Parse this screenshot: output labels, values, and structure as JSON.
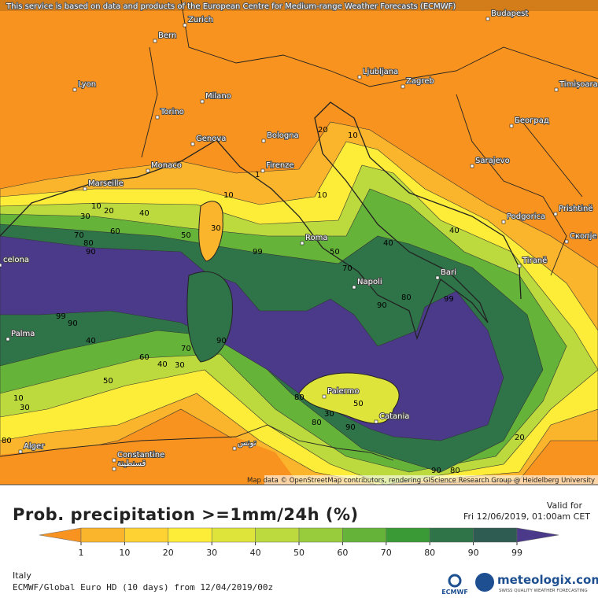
{
  "banner": "This service is based on data and products of the European Centre for Medium-range Weather Forecasts (ECMWF)",
  "attribution": "Map data © OpenStreetMap contributors, rendering GIScience Research Group @ Heidelberg University",
  "cities": [
    "Bern",
    "Zurich",
    "Budapest",
    "Lyon",
    "Milano",
    "Ljubljana",
    "Zagreb",
    "Timișoara",
    "Torino",
    "Genova",
    "Bologna",
    "Београд",
    "Sarajevo",
    "Monaco",
    "Firenze",
    "Marseille",
    "Podgorica",
    "Prishtinë",
    "Roma",
    "Скопје",
    "Tiranë",
    "celona",
    "Napoli",
    "Bari",
    "Palma",
    "Palermo",
    "Catania",
    "Alger",
    "Constantine",
    "قسنطينة",
    "تونس"
  ],
  "contour_labels": [
    "20",
    "10",
    "1",
    "10",
    "10",
    "10",
    "20",
    "40",
    "30",
    "60",
    "70",
    "80",
    "90",
    "50",
    "30",
    "99",
    "50",
    "40",
    "40",
    "70",
    "90",
    "80",
    "99",
    "99",
    "90",
    "40",
    "60",
    "40",
    "30",
    "70",
    "90",
    "50",
    "10",
    "30",
    "80",
    "50",
    "30",
    "80",
    "90",
    "20",
    "80",
    "90",
    "80"
  ],
  "title": "Prob. precipitation >=1mm/24h (%)",
  "valid_label": "Valid for",
  "valid_time": "Fri 12/06/2019, 01:00am CET",
  "legend": {
    "ticks": [
      1,
      10,
      20,
      30,
      40,
      50,
      60,
      70,
      80,
      90,
      99
    ],
    "colors": [
      "#f7931e",
      "#fbb52c",
      "#fdd232",
      "#fdec38",
      "#dfe43a",
      "#bcd93e",
      "#98cc3d",
      "#66b33a",
      "#3a9a35",
      "#2f7448",
      "#2e5b52",
      "#4b3a89"
    ]
  },
  "region": "Italy",
  "model_run": "ECMWF/Global Euro HD (10 days) from 12/04/2019/00z",
  "logo_ecmwf": "ECMWF",
  "logo_brand": "meteologix.com",
  "logo_tagline": "SWISS QUALITY WEATHER FORECASTING"
}
